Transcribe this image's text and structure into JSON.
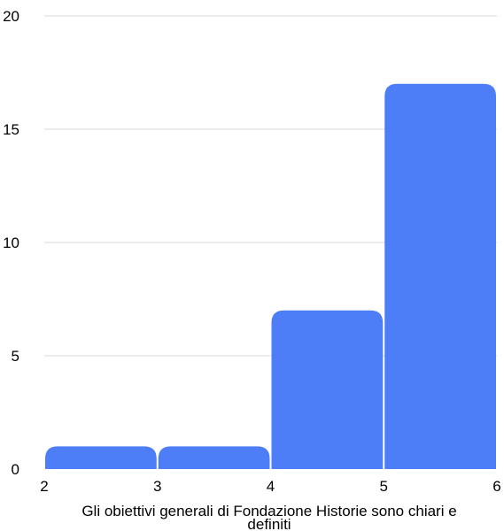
{
  "chart_data": {
    "type": "bar",
    "subtype": "histogram",
    "bins": [
      {
        "x0": 2,
        "x1": 3,
        "value": 1
      },
      {
        "x0": 3,
        "x1": 4,
        "value": 1
      },
      {
        "x0": 4,
        "x1": 5,
        "value": 7
      },
      {
        "x0": 5,
        "x1": 6,
        "value": 17
      }
    ],
    "x_ticks": [
      2,
      3,
      4,
      5,
      6
    ],
    "y_ticks": [
      0,
      5,
      10,
      15,
      20
    ],
    "xlim": [
      2,
      6
    ],
    "ylim": [
      0,
      20
    ],
    "xlabel_lines": [
      "Gli obiettivi generali di Fondazione Historie sono chiari e",
      "definiti"
    ],
    "grid": "horizontal",
    "legend": "none",
    "bar_color": "#4d7ef7",
    "grid_color": "#d9d9d9"
  }
}
